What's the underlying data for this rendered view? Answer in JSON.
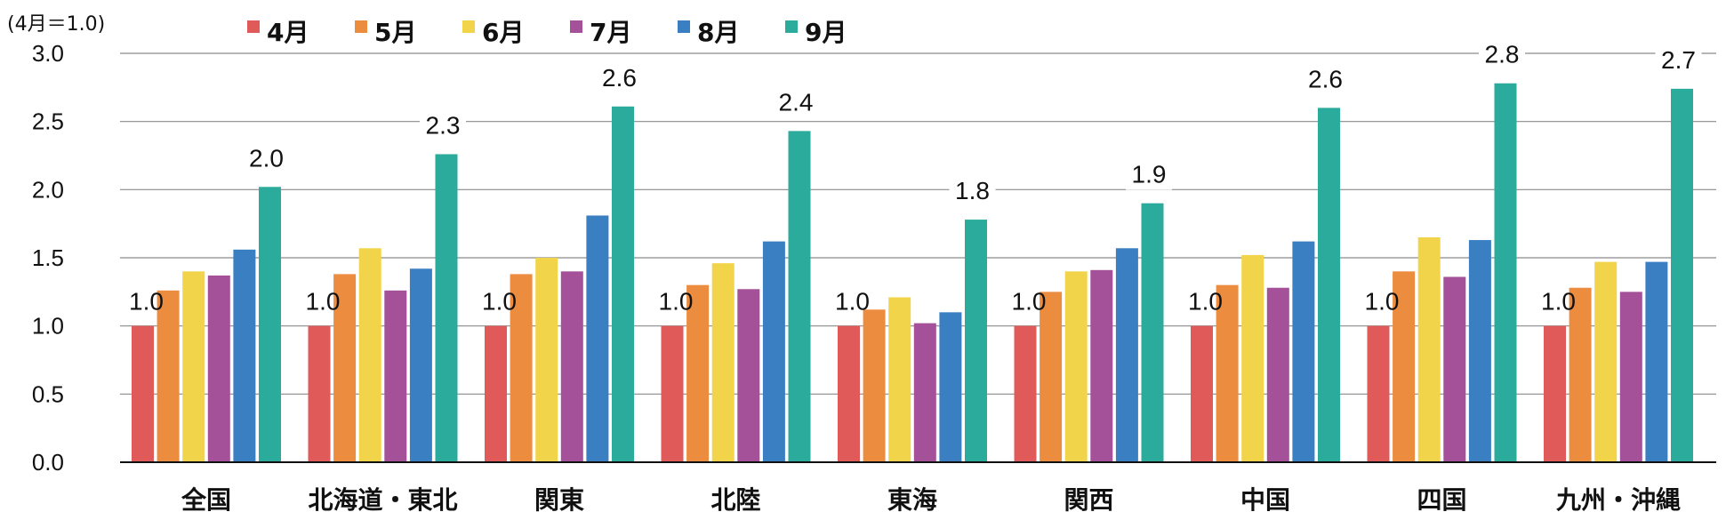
{
  "chart_data": {
    "type": "bar",
    "unit_label": "(4月＝1.0)",
    "ylim": [
      0,
      3.0
    ],
    "yticks": [
      "0.0",
      "0.5",
      "1.0",
      "1.5",
      "2.0",
      "2.5",
      "3.0"
    ],
    "grid": true,
    "legend_position": "top",
    "categories": [
      "全国",
      "北海道・東北",
      "関東",
      "北陸",
      "東海",
      "関西",
      "中国",
      "四国",
      "九州・沖縄"
    ],
    "series": [
      {
        "name": "4月",
        "color": "#e05a5a",
        "values": [
          1.0,
          1.0,
          1.0,
          1.0,
          1.0,
          1.0,
          1.0,
          1.0,
          1.0
        ]
      },
      {
        "name": "5月",
        "color": "#ec8c3f",
        "values": [
          1.26,
          1.38,
          1.38,
          1.3,
          1.12,
          1.25,
          1.3,
          1.4,
          1.28
        ]
      },
      {
        "name": "6月",
        "color": "#f2d44a",
        "values": [
          1.4,
          1.57,
          1.5,
          1.46,
          1.21,
          1.4,
          1.52,
          1.65,
          1.47
        ]
      },
      {
        "name": "7月",
        "color": "#a55199",
        "values": [
          1.37,
          1.26,
          1.4,
          1.27,
          1.02,
          1.41,
          1.28,
          1.36,
          1.25
        ]
      },
      {
        "name": "8月",
        "color": "#3a7fc1",
        "values": [
          1.56,
          1.42,
          1.81,
          1.62,
          1.1,
          1.57,
          1.62,
          1.63,
          1.47
        ]
      },
      {
        "name": "9月",
        "color": "#2bab9b",
        "values": [
          2.02,
          2.26,
          2.61,
          2.43,
          1.78,
          1.9,
          2.6,
          2.78,
          2.74
        ]
      }
    ],
    "first_bar_labels": [
      "1.0",
      "1.0",
      "1.0",
      "1.0",
      "1.0",
      "1.0",
      "1.0",
      "1.0",
      "1.0"
    ],
    "last_bar_labels": [
      "2.0",
      "2.3",
      "2.6",
      "2.4",
      "1.8",
      "1.9",
      "2.6",
      "2.8",
      "2.7"
    ]
  }
}
